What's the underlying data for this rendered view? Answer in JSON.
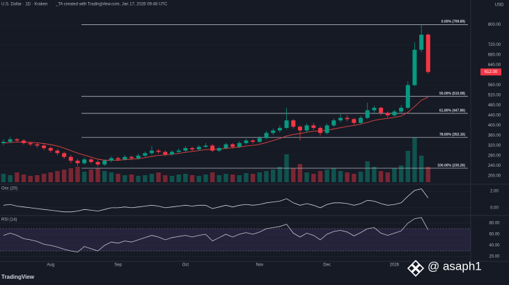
{
  "chart_data": {
    "type": "candlestick",
    "title": "U.S. Dollar · 1D · Kraken",
    "subtitle": "_TA created with TradingView.com, Jan 17, 2026 09:48 UTC",
    "currency_label": "USD",
    "categories": [
      null,
      null,
      null,
      null,
      null,
      null,
      null,
      "Aug",
      null,
      null,
      null,
      null,
      null,
      null,
      null,
      null,
      null,
      "Sep",
      null,
      null,
      null,
      null,
      null,
      null,
      null,
      null,
      null,
      "Oct",
      null,
      null,
      null,
      null,
      null,
      null,
      null,
      null,
      null,
      null,
      "Nov",
      null,
      null,
      null,
      null,
      null,
      null,
      null,
      null,
      null,
      "Dec",
      null,
      null,
      null,
      null,
      null,
      null,
      null,
      null,
      null,
      "2026",
      null,
      null,
      null,
      null,
      null
    ],
    "open": [
      330,
      335,
      345,
      340,
      330,
      325,
      320,
      310,
      300,
      290,
      275,
      260,
      250,
      265,
      255,
      245,
      260,
      270,
      265,
      275,
      270,
      280,
      290,
      300,
      295,
      285,
      295,
      300,
      310,
      305,
      315,
      320,
      300,
      310,
      325,
      315,
      330,
      340,
      335,
      350,
      370,
      380,
      390,
      420,
      395,
      380,
      400,
      390,
      370,
      400,
      420,
      430,
      425,
      410,
      430,
      460,
      470,
      450,
      440,
      455,
      470,
      560,
      700,
      760
    ],
    "high": [
      345,
      355,
      350,
      346,
      336,
      332,
      326,
      316,
      306,
      296,
      282,
      268,
      272,
      270,
      262,
      266,
      278,
      276,
      282,
      280,
      288,
      296,
      318,
      306,
      300,
      302,
      308,
      318,
      316,
      322,
      330,
      326,
      316,
      332,
      330,
      338,
      348,
      346,
      358,
      378,
      388,
      400,
      470,
      425,
      400,
      408,
      410,
      396,
      408,
      428,
      445,
      440,
      430,
      438,
      490,
      478,
      474,
      456,
      462,
      480,
      575,
      730,
      800,
      765
    ],
    "low": [
      322,
      330,
      332,
      324,
      318,
      312,
      302,
      292,
      282,
      268,
      250,
      238,
      244,
      248,
      236,
      240,
      254,
      258,
      260,
      262,
      265,
      274,
      284,
      288,
      278,
      280,
      290,
      294,
      298,
      300,
      310,
      294,
      294,
      305,
      308,
      310,
      324,
      328,
      330,
      345,
      362,
      372,
      385,
      388,
      340,
      372,
      382,
      360,
      365,
      394,
      412,
      416,
      402,
      404,
      425,
      450,
      440,
      430,
      435,
      448,
      465,
      555,
      690,
      605
    ],
    "close": [
      335,
      345,
      340,
      330,
      325,
      320,
      310,
      300,
      290,
      275,
      260,
      250,
      265,
      255,
      245,
      260,
      270,
      265,
      275,
      270,
      280,
      290,
      300,
      295,
      285,
      295,
      300,
      310,
      305,
      315,
      320,
      300,
      310,
      325,
      315,
      330,
      340,
      335,
      350,
      370,
      380,
      390,
      420,
      395,
      380,
      400,
      390,
      370,
      400,
      420,
      430,
      425,
      410,
      430,
      460,
      470,
      450,
      440,
      455,
      470,
      560,
      700,
      760,
      612
    ],
    "up_color": "#089981",
    "down_color": "#f23645",
    "last_price_label": "612.00",
    "ylim": [
      175,
      870
    ],
    "yticks": [
      {
        "value": 200,
        "label": "200.00"
      },
      {
        "value": 240,
        "label": "240.00"
      },
      {
        "value": 280,
        "label": "280.00"
      },
      {
        "value": 320,
        "label": "320.00"
      },
      {
        "value": 360,
        "label": "360.00"
      },
      {
        "value": 400,
        "label": "400.00"
      },
      {
        "value": 440,
        "label": "440.00"
      },
      {
        "value": 480,
        "label": "480.00"
      },
      {
        "value": 520,
        "label": "520.00"
      },
      {
        "value": 560,
        "label": "560.00"
      },
      {
        "value": 640,
        "label": "640.00"
      },
      {
        "value": 680,
        "label": "680.00"
      },
      {
        "value": 720,
        "label": "720.00"
      },
      {
        "value": 800,
        "label": "800.00"
      }
    ],
    "fib_color": "#b2b5be",
    "fib_levels": [
      {
        "value": 799.89,
        "label": "0.00% (799.89)"
      },
      {
        "value": 515.08,
        "label": "50.00% (515.08)"
      },
      {
        "value": 447.86,
        "label": "61.80% (447.86)"
      },
      {
        "value": 352.16,
        "label": "78.60% (352.16)"
      },
      {
        "value": 230.26,
        "label": "100.00% (230.26)"
      }
    ],
    "ma": {
      "color": "#e0443f",
      "values": [
        330,
        332,
        334,
        334,
        333,
        331,
        328,
        324,
        318,
        310,
        300,
        290,
        282,
        274,
        266,
        262,
        262,
        262,
        264,
        266,
        268,
        272,
        277,
        281,
        283,
        286,
        289,
        293,
        297,
        300,
        304,
        305,
        306,
        309,
        311,
        314,
        318,
        321,
        325,
        332,
        340,
        348,
        358,
        364,
        368,
        373,
        377,
        378,
        381,
        386,
        391,
        396,
        400,
        405,
        412,
        420,
        425,
        428,
        432,
        437,
        452,
        475,
        500,
        512
      ]
    },
    "volume": {
      "values": [
        12,
        10,
        14,
        11,
        9,
        10,
        12,
        14,
        16,
        18,
        20,
        22,
        15,
        18,
        20,
        16,
        14,
        12,
        10,
        11,
        9,
        10,
        12,
        14,
        10,
        9,
        11,
        12,
        10,
        9,
        11,
        14,
        10,
        12,
        11,
        10,
        13,
        12,
        14,
        16,
        18,
        22,
        40,
        20,
        26,
        14,
        12,
        16,
        18,
        20,
        16,
        14,
        12,
        15,
        30,
        22,
        16,
        14,
        20,
        24,
        45,
        64,
        38,
        22
      ]
    },
    "indicators": [
      {
        "type": "line",
        "name": "Osc (20)",
        "color": "#d1d4dc",
        "values": [
          0.3,
          0.4,
          0.2,
          0.1,
          0,
          -0.1,
          -0.2,
          -0.3,
          -0.4,
          -0.5,
          -0.5,
          -0.4,
          -0.2,
          -0.3,
          -0.4,
          -0.2,
          0,
          0,
          0.1,
          0,
          0.1,
          0.2,
          0.3,
          0.2,
          0,
          0.1,
          0.2,
          0.3,
          0.2,
          0.3,
          0.3,
          -0.1,
          0.1,
          0.3,
          0.1,
          0.3,
          0.4,
          0.3,
          0.4,
          0.6,
          0.7,
          0.8,
          1.1,
          0.6,
          0.3,
          0.5,
          0.3,
          0,
          0.4,
          0.6,
          0.6,
          0.5,
          0.3,
          0.5,
          0.9,
          0.8,
          0.5,
          0.3,
          0.4,
          0.6,
          1.4,
          2.1,
          2.3,
          1.2
        ],
        "ylim": [
          -0.6,
          2.6
        ],
        "yticks": [
          {
            "value": 0,
            "label": "0.00"
          },
          {
            "value": 2,
            "label": "2.00"
          }
        ]
      },
      {
        "type": "line",
        "name": "RSI (14)",
        "color": "#c4c6cf",
        "band": [
          30,
          70
        ],
        "band_color": "#7e57c2",
        "values": [
          58,
          62,
          58,
          52,
          50,
          47,
          42,
          40,
          37,
          33,
          30,
          28,
          38,
          34,
          30,
          40,
          46,
          44,
          48,
          46,
          50,
          54,
          58,
          55,
          50,
          54,
          56,
          58,
          55,
          58,
          60,
          48,
          54,
          60,
          55,
          60,
          63,
          60,
          64,
          70,
          72,
          74,
          78,
          62,
          55,
          62,
          58,
          50,
          60,
          65,
          67,
          64,
          57,
          63,
          70,
          72,
          62,
          58,
          62,
          66,
          80,
          88,
          90,
          68
        ],
        "ylim": [
          12.5,
          90
        ],
        "yticks": [
          {
            "value": 20,
            "label": "20.00"
          },
          {
            "value": 40,
            "label": "40.00"
          },
          {
            "value": 60,
            "label": "60.00"
          },
          {
            "value": 80,
            "label": "80.00"
          }
        ]
      }
    ],
    "watermark": "TradingView",
    "author": "@ asaph1"
  }
}
